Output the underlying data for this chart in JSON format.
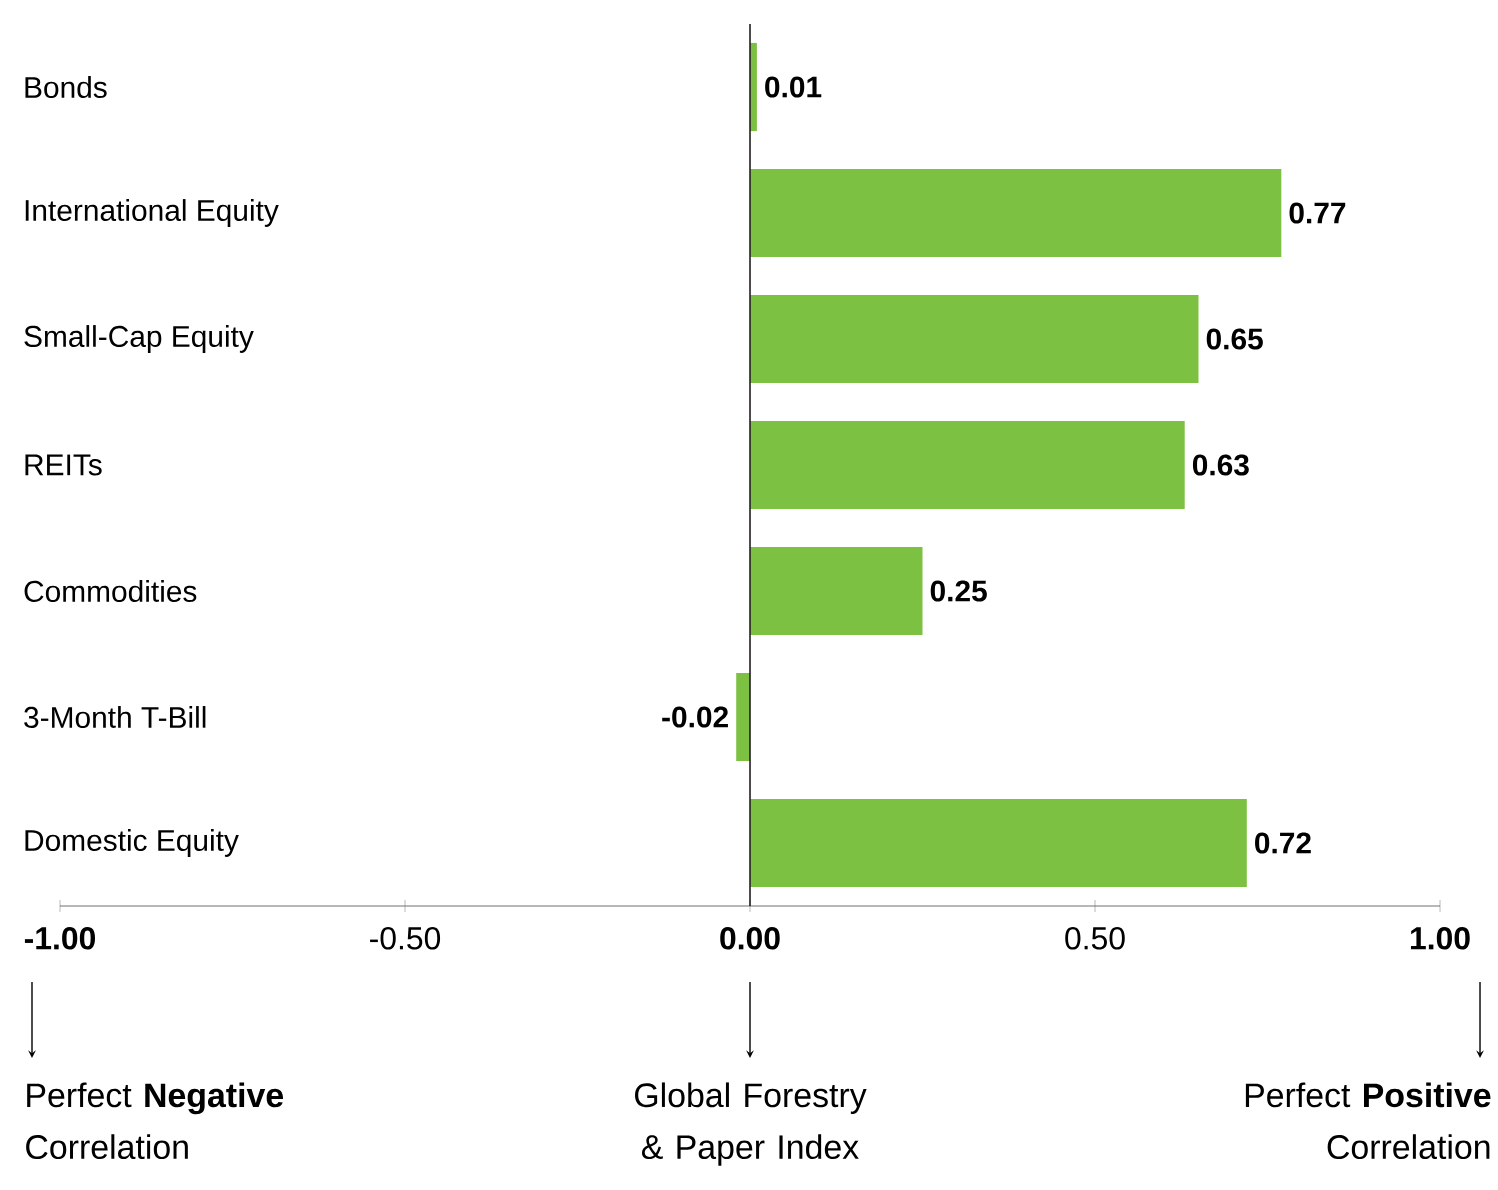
{
  "chart_data": {
    "type": "bar",
    "orientation": "horizontal",
    "categories": [
      "Bonds",
      "International Equity",
      "Small-Cap Equity",
      "REITs",
      "Commodities",
      "3-Month T-Bill",
      "Domestic Equity"
    ],
    "values": [
      0.01,
      0.77,
      0.65,
      0.63,
      0.25,
      -0.02,
      0.72
    ],
    "color": "#7dc142",
    "data_labels": true,
    "xlim": [
      -1,
      1
    ],
    "xticks": [
      {
        "value": -1,
        "label": "**-1.00**"
      },
      {
        "value": -0.5,
        "label": "-0.50"
      },
      {
        "value": 0,
        "label": "**0.00**"
      },
      {
        "value": 0.5,
        "label": "0.50"
      },
      {
        "value": 1,
        "label": "**1.00**"
      }
    ],
    "ref_lines": [
      {
        "axis": "x",
        "value": 0,
        "color": "#231f20"
      }
    ],
    "annotations": [
      "Perfect **Negative** Correlation",
      "Global Forestry & Paper Index",
      "Perfect **Positive** Correlation"
    ]
  }
}
